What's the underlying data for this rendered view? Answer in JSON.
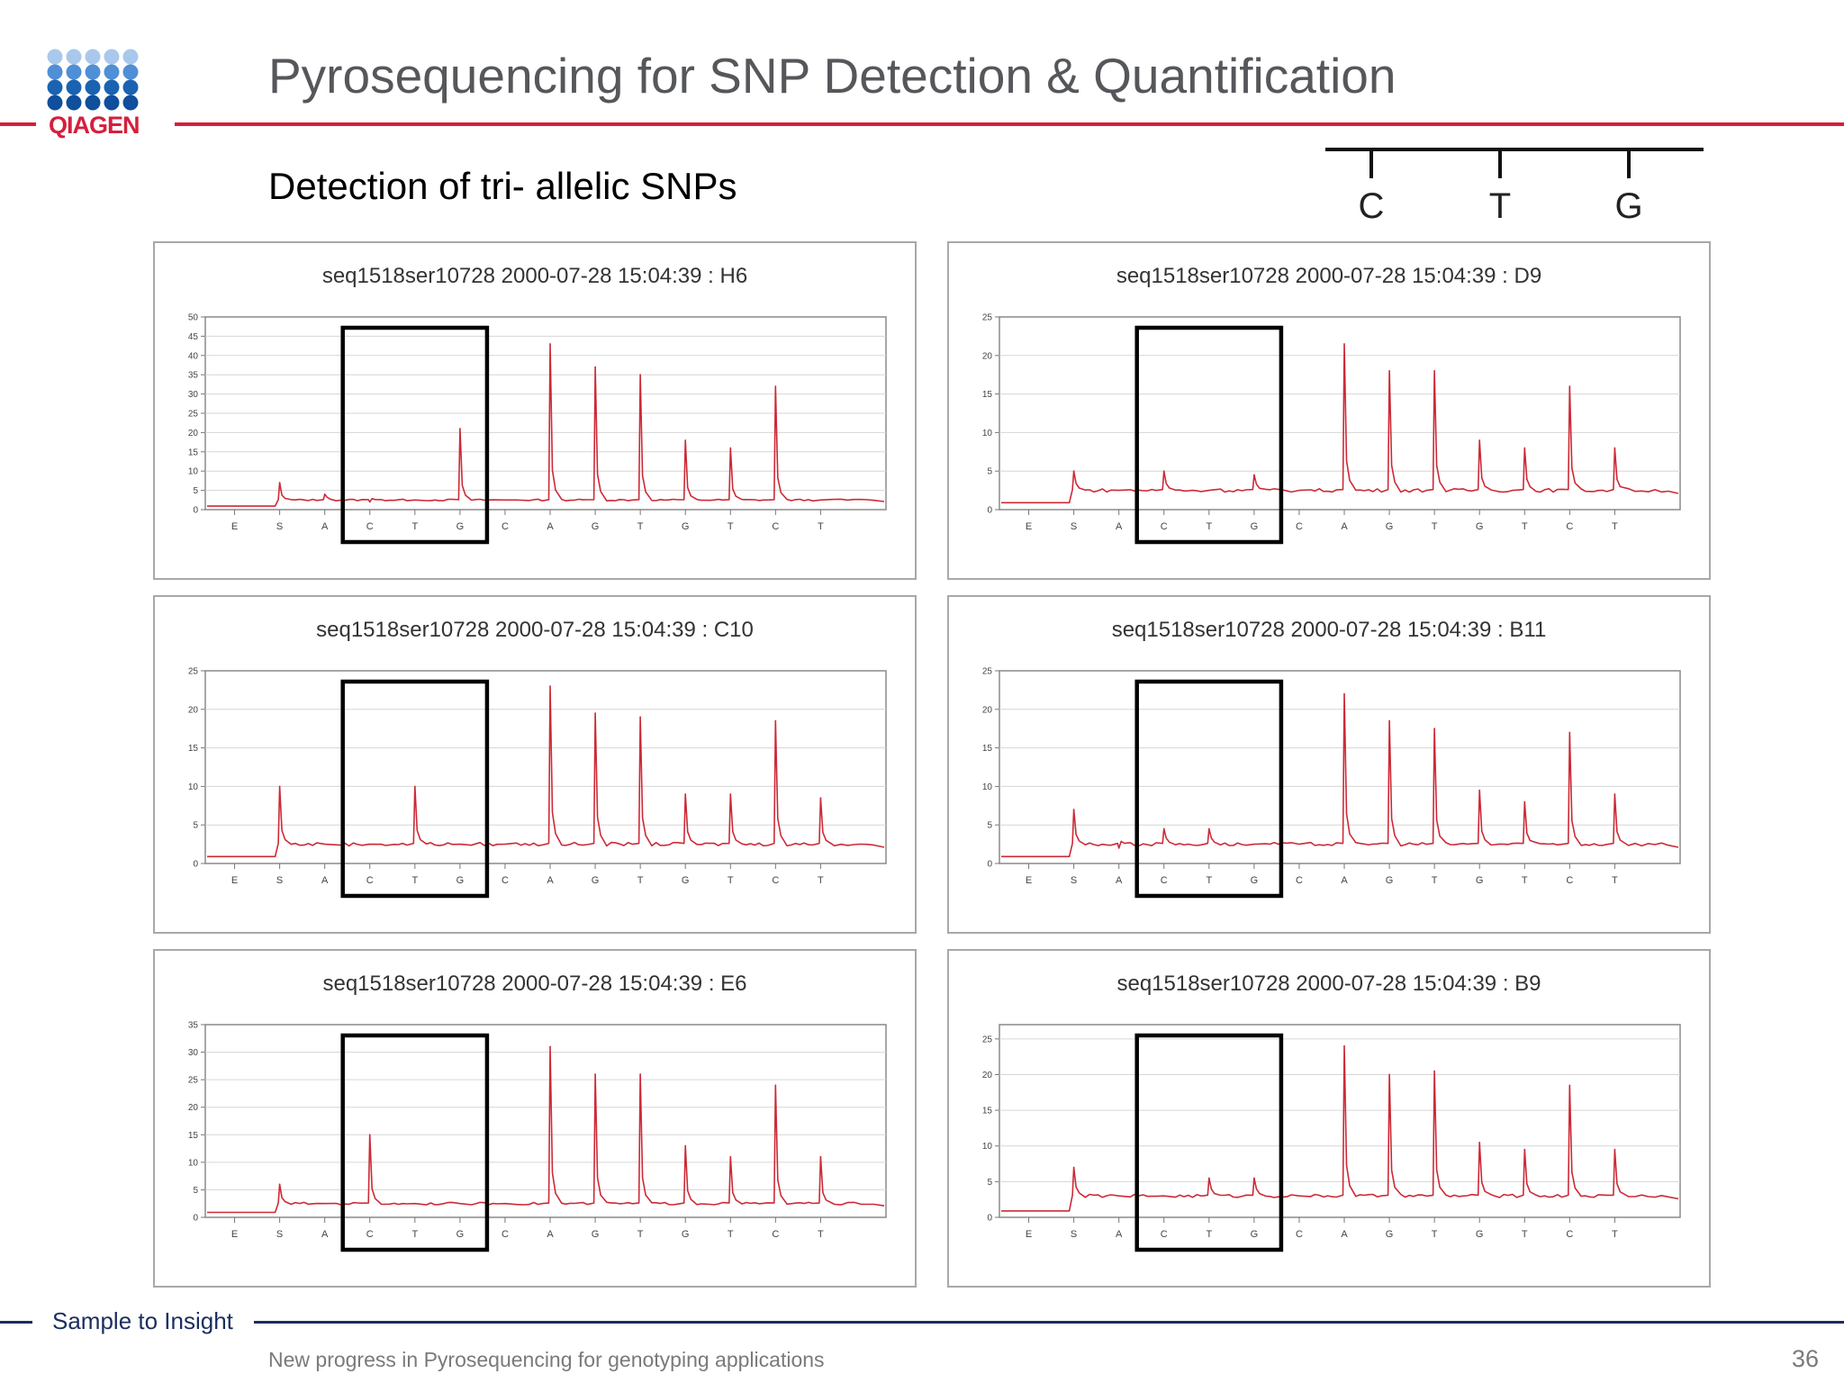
{
  "slide": {
    "title": "Pyrosequencing for SNP Detection & Quantification",
    "subtitle": "Detection of tri- allelic SNPs",
    "page_number": "36"
  },
  "brand": {
    "logo_text": "QIAGEN",
    "tagline": "Sample to Insight",
    "colors": {
      "primary": "#d4203c",
      "navy": "#1b2e5f",
      "logo_blue": "#1863ad",
      "trace": "#cc2a36"
    }
  },
  "footer": {
    "text": "New progress in Pyrosequencing for genotyping applications"
  },
  "allele_legend": {
    "labels": [
      "C",
      "T",
      "G"
    ]
  },
  "chart_data": [
    {
      "type": "line",
      "title": "seq1518ser10728 2000-07-28 15:04:39 : H6",
      "dispensations": [
        "E",
        "S",
        "A",
        "C",
        "T",
        "G",
        "C",
        "A",
        "G",
        "T",
        "G",
        "T",
        "C",
        "T"
      ],
      "values": [
        0,
        7,
        4,
        2,
        0,
        21,
        0,
        43,
        37,
        35,
        18,
        16,
        32,
        0
      ],
      "baseline": 2.5,
      "ylim": [
        0,
        50
      ],
      "yticks": [
        0,
        5,
        10,
        15,
        20,
        25,
        30,
        35,
        40,
        45,
        50
      ],
      "highlight_positions": [
        "C",
        "T",
        "G"
      ],
      "grid": true
    },
    {
      "type": "line",
      "title": "seq1518ser10728 2000-07-28 15:04:39 : D9",
      "dispensations": [
        "E",
        "S",
        "A",
        "C",
        "T",
        "G",
        "C",
        "A",
        "G",
        "T",
        "G",
        "T",
        "C",
        "T"
      ],
      "values": [
        0,
        5,
        0,
        5,
        0,
        4.5,
        0,
        21.5,
        18,
        18,
        9,
        8,
        16,
        8
      ],
      "baseline": 2.5,
      "ylim": [
        0,
        25
      ],
      "yticks": [
        0,
        5,
        10,
        15,
        20,
        25
      ],
      "highlight_positions": [
        "C",
        "T",
        "G"
      ],
      "grid": true
    },
    {
      "type": "line",
      "title": "seq1518ser10728 2000-07-28 15:04:39 : C10",
      "dispensations": [
        "E",
        "S",
        "A",
        "C",
        "T",
        "G",
        "C",
        "A",
        "G",
        "T",
        "G",
        "T",
        "C",
        "T"
      ],
      "values": [
        0,
        10,
        0,
        0,
        10,
        0,
        0,
        23,
        19.5,
        19,
        9,
        9,
        18.5,
        8.5
      ],
      "baseline": 2.5,
      "ylim": [
        0,
        25
      ],
      "yticks": [
        0,
        5,
        10,
        15,
        20,
        25
      ],
      "highlight_positions": [
        "C",
        "T",
        "G"
      ],
      "grid": true
    },
    {
      "type": "line",
      "title": "seq1518ser10728 2000-07-28 15:04:39 : B11",
      "dispensations": [
        "E",
        "S",
        "A",
        "C",
        "T",
        "G",
        "C",
        "A",
        "G",
        "T",
        "G",
        "T",
        "C",
        "T"
      ],
      "values": [
        0,
        7,
        2,
        4.5,
        4.5,
        0,
        0,
        22,
        18.5,
        17.5,
        9.5,
        8,
        17,
        9
      ],
      "baseline": 2.5,
      "ylim": [
        0,
        25
      ],
      "yticks": [
        0,
        5,
        10,
        15,
        20,
        25
      ],
      "highlight_positions": [
        "C",
        "T",
        "G"
      ],
      "grid": true
    },
    {
      "type": "line",
      "title": "seq1518ser10728 2000-07-28 15:04:39 : E6",
      "dispensations": [
        "E",
        "S",
        "A",
        "C",
        "T",
        "G",
        "C",
        "A",
        "G",
        "T",
        "G",
        "T",
        "C",
        "T"
      ],
      "values": [
        0,
        6,
        0,
        15,
        0,
        0,
        0,
        31,
        26,
        26,
        13,
        11,
        24,
        11
      ],
      "baseline": 2.5,
      "ylim": [
        0,
        35
      ],
      "yticks": [
        0,
        5,
        10,
        15,
        20,
        25,
        30,
        35
      ],
      "highlight_positions": [
        "C",
        "T",
        "G"
      ],
      "grid": true
    },
    {
      "type": "line",
      "title": "seq1518ser10728 2000-07-28 15:04:39 : B9",
      "dispensations": [
        "E",
        "S",
        "A",
        "C",
        "T",
        "G",
        "C",
        "A",
        "G",
        "T",
        "G",
        "T",
        "C",
        "T"
      ],
      "values": [
        0,
        7,
        0,
        0,
        5.5,
        5.5,
        0,
        24,
        20,
        20.5,
        10.5,
        9.5,
        18.5,
        9.5
      ],
      "baseline": 3,
      "ylim": [
        0,
        27
      ],
      "yticks": [
        0,
        5,
        10,
        15,
        20,
        25
      ],
      "highlight_positions": [
        "C",
        "T",
        "G"
      ],
      "grid": true
    }
  ]
}
